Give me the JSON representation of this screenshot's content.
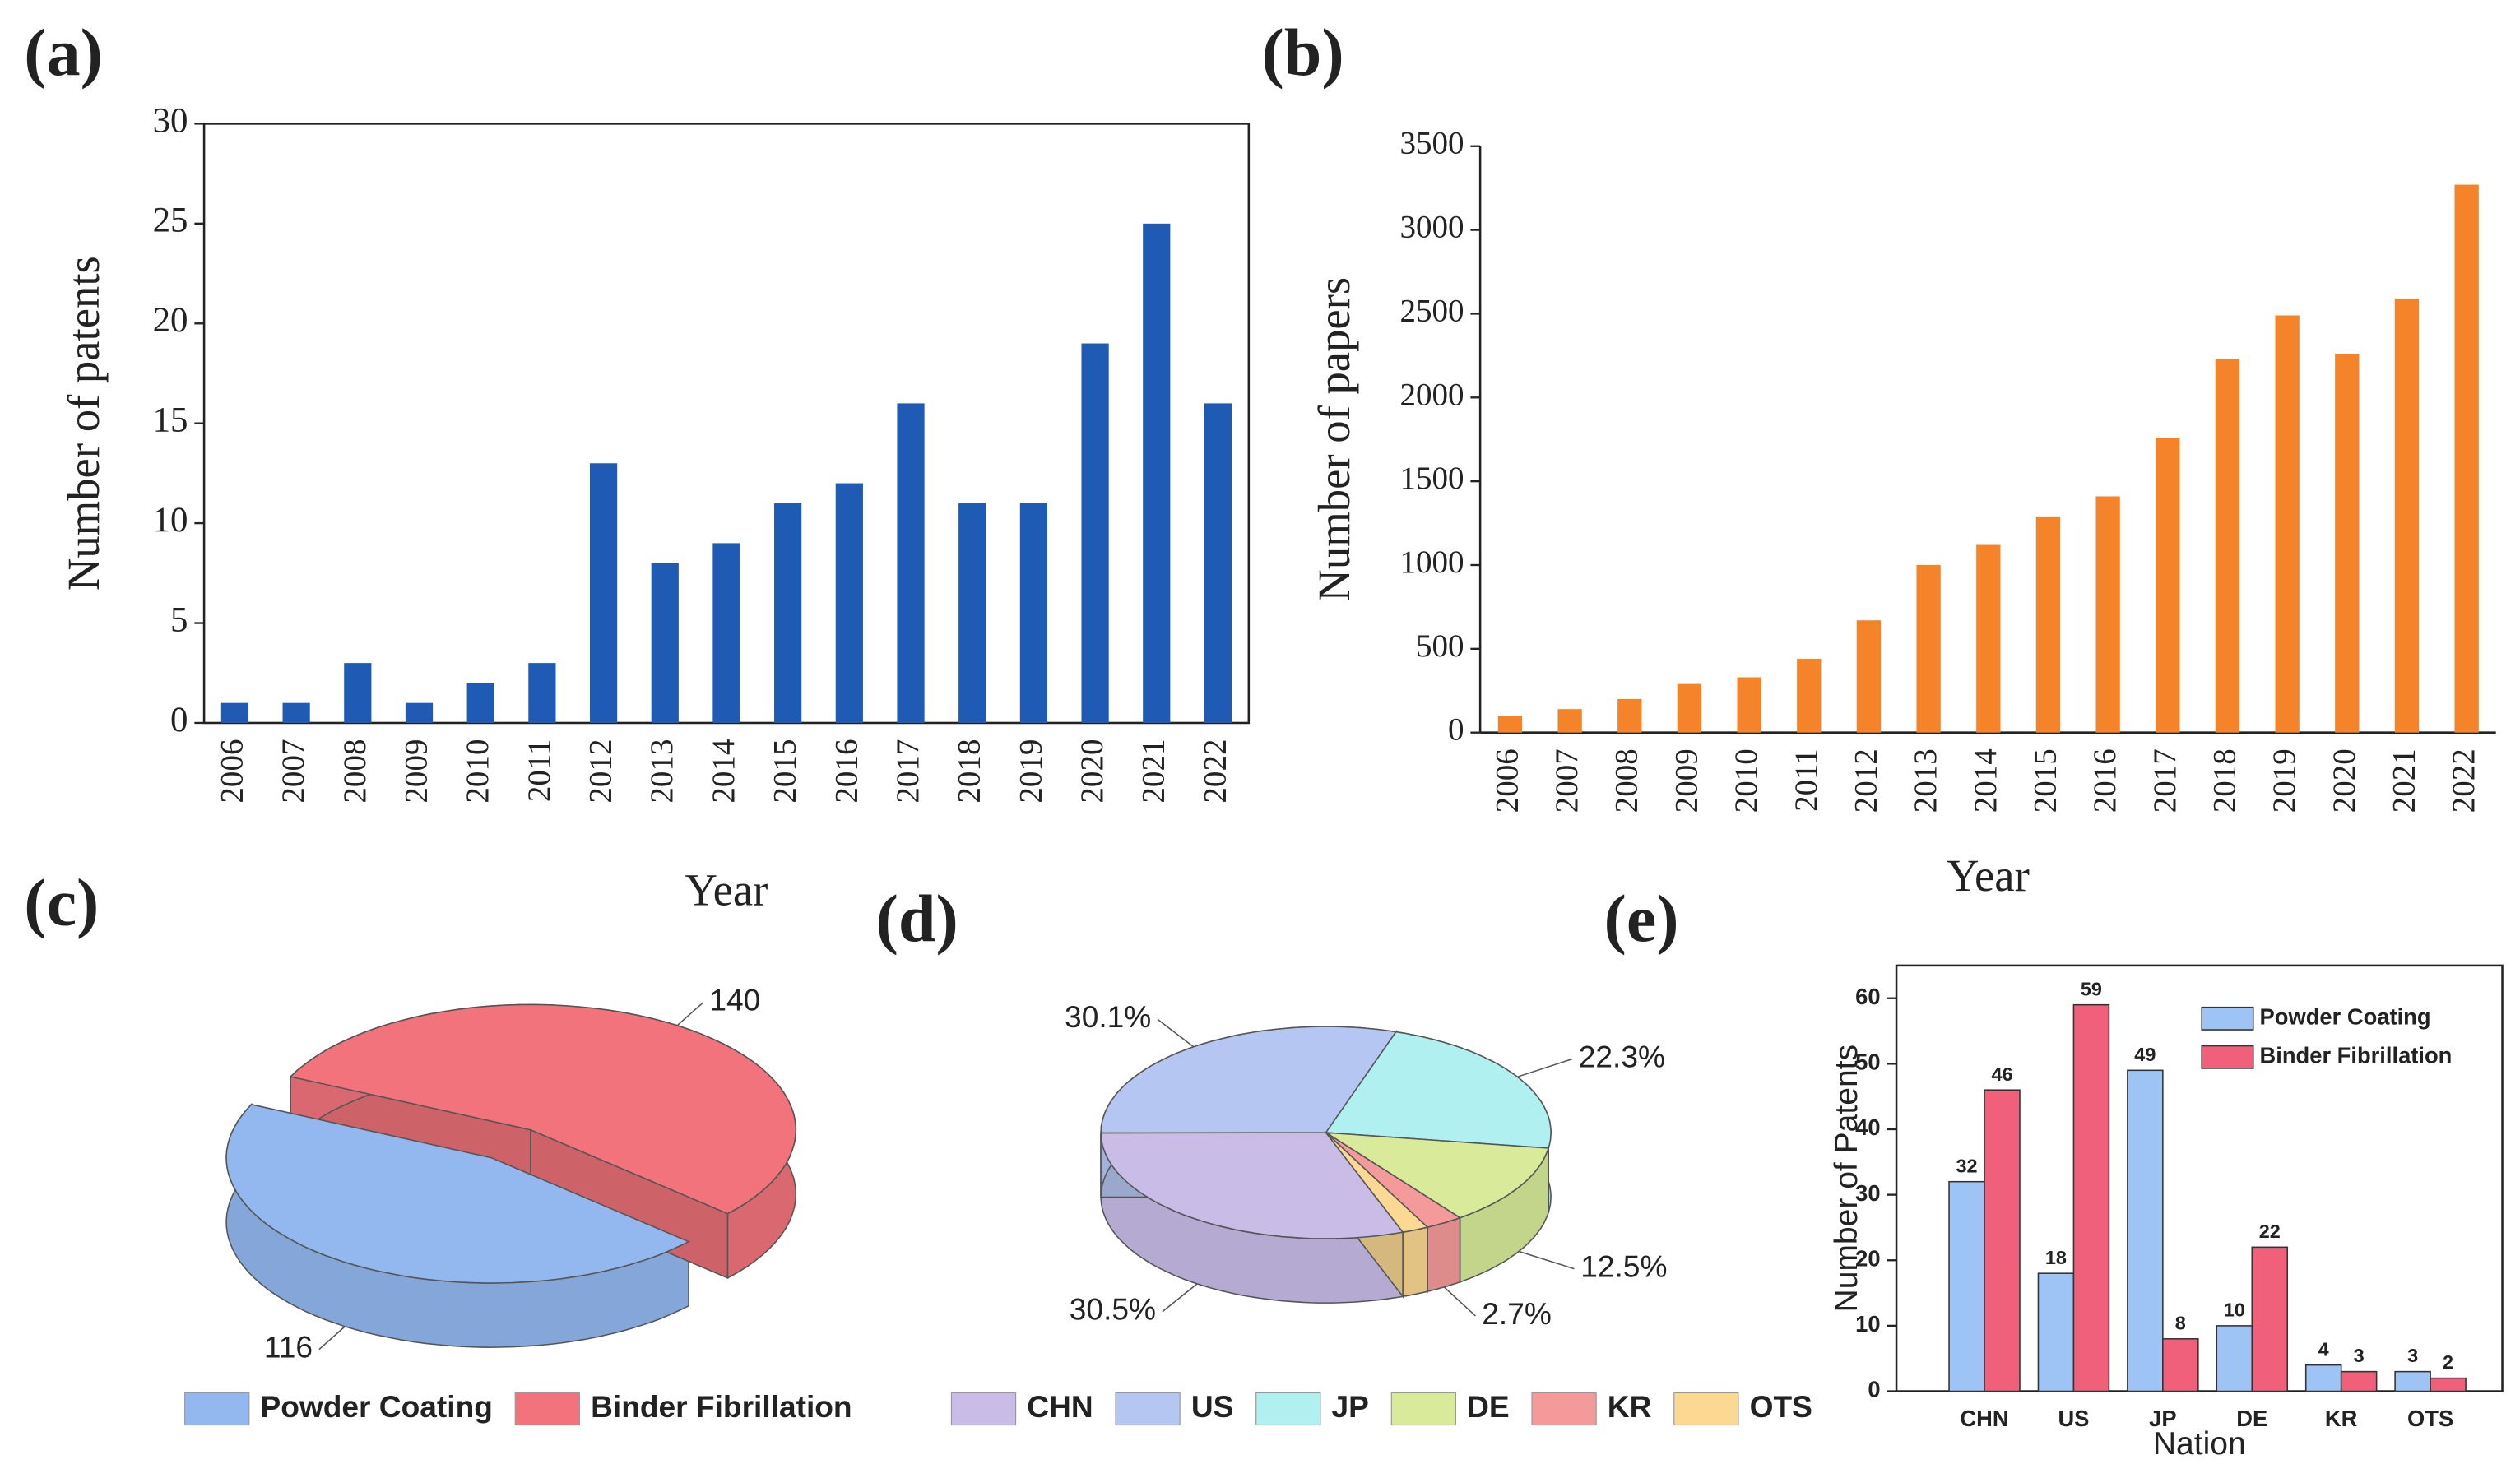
{
  "chart_data": [
    {
      "type": "bar",
      "panel": "(a)",
      "x_label": "Year",
      "y_label": "Number of patents",
      "categories": [
        "2006",
        "2007",
        "2008",
        "2009",
        "2010",
        "2011",
        "2012",
        "2013",
        "2014",
        "2015",
        "2016",
        "2017",
        "2018",
        "2019",
        "2020",
        "2021",
        "2022"
      ],
      "values": [
        1,
        1,
        3,
        1,
        2,
        3,
        13,
        8,
        9,
        11,
        12,
        16,
        11,
        11,
        19,
        25,
        16
      ],
      "color": "#1f5bb5",
      "ylim": [
        0,
        30
      ],
      "yticks": [
        0,
        5,
        10,
        15,
        20,
        25,
        30
      ]
    },
    {
      "type": "bar",
      "panel": "(b)",
      "x_label": "Year",
      "y_label": "Number of papers",
      "categories": [
        "2006",
        "2007",
        "2008",
        "2009",
        "2010",
        "2011",
        "2012",
        "2013",
        "2014",
        "2015",
        "2016",
        "2017",
        "2018",
        "2019",
        "2020",
        "2021",
        "2022"
      ],
      "values": [
        100,
        140,
        200,
        290,
        330,
        440,
        670,
        1000,
        1120,
        1290,
        1410,
        1760,
        2230,
        2490,
        2260,
        2590,
        3270
      ],
      "color": "#f5832a",
      "ylim": [
        0,
        3500
      ],
      "yticks": [
        0,
        500,
        1000,
        1500,
        2000,
        2500,
        3000,
        3500
      ]
    },
    {
      "type": "pie",
      "panel": "(c)",
      "three_d": true,
      "exploded": true,
      "categories": [
        "Powder Coating",
        "Binder Fibrillation"
      ],
      "values": [
        116,
        140
      ],
      "colors": [
        "#93b8f0",
        "#f2737c"
      ]
    },
    {
      "type": "pie",
      "panel": "(d)",
      "three_d": true,
      "categories": [
        "CHN",
        "US",
        "JP",
        "DE",
        "KR",
        "OTS"
      ],
      "values": [
        30.5,
        30.1,
        22.3,
        12.5,
        2.7,
        1.9
      ],
      "value_labels": [
        "30.5%",
        "30.1%",
        "22.3%",
        "12.5%",
        "2.7%",
        null
      ],
      "colors": [
        "#c9bde8",
        "#b5c6f2",
        "#b0f0f0",
        "#d9eb9a",
        "#f59a9a",
        "#fbd993"
      ]
    },
    {
      "type": "bar",
      "panel": "(e)",
      "x_label": "Nation",
      "y_label": "Number of Patents",
      "categories": [
        "CHN",
        "US",
        "JP",
        "DE",
        "KR",
        "OTS"
      ],
      "series": [
        {
          "name": "Powder Coating",
          "color": "#9ec3f5",
          "values": [
            32,
            18,
            49,
            10,
            4,
            3
          ]
        },
        {
          "name": "Binder Fibrillation",
          "color": "#f0607a",
          "values": [
            46,
            59,
            8,
            22,
            3,
            2
          ]
        }
      ],
      "ylim": [
        0,
        65
      ],
      "yticks": [
        0,
        10,
        20,
        30,
        40,
        50,
        60
      ],
      "legend": "upper right"
    }
  ]
}
